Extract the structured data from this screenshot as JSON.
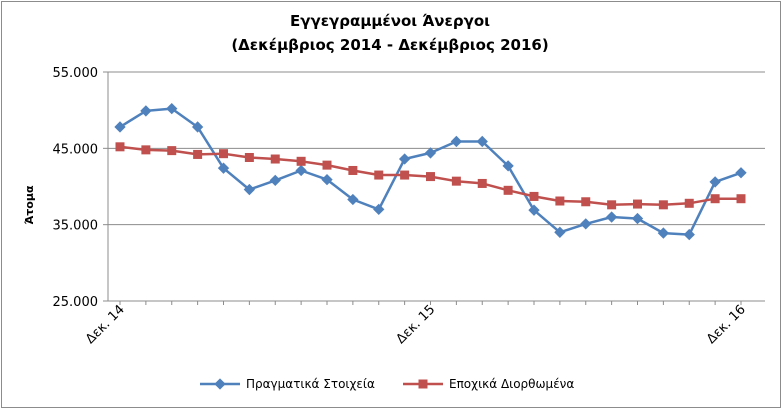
{
  "chart_data": {
    "type": "line",
    "title": "Εγγεγραμμένοι Άνεργοι",
    "subtitle": "(Δεκέμβριος 2014 - Δεκέμβριος 2016)",
    "ylabel": "Άτομα",
    "xlabel": "",
    "ylim": [
      25000,
      55000
    ],
    "yticks": [
      25000,
      35000,
      45000,
      55000
    ],
    "ytick_labels": [
      "25.000",
      "35.000",
      "45.000",
      "55.000"
    ],
    "xtick_labels": [
      {
        "index": 0,
        "label": "Δεκ. 14"
      },
      {
        "index": 12,
        "label": "Δεκ. 15"
      },
      {
        "index": 24,
        "label": "Δεκ. 16"
      }
    ],
    "grid": "horizontal",
    "legend": "bottom",
    "series": [
      {
        "name": "Πραγματικά Στοιχεία",
        "color": "#4f81bd",
        "marker": "diamond",
        "values": [
          47800,
          49900,
          50200,
          47800,
          42400,
          39600,
          40800,
          42100,
          40900,
          38300,
          37000,
          43600,
          44400,
          45900,
          45900,
          42700,
          36900,
          34000,
          35100,
          36000,
          35800,
          33900,
          33700,
          40600,
          41800
        ]
      },
      {
        "name": "Εποχικά Διορθωμένα",
        "color": "#c0504d",
        "marker": "square",
        "values": [
          45200,
          44800,
          44700,
          44200,
          44300,
          43800,
          43600,
          43300,
          42800,
          42100,
          41500,
          41500,
          41300,
          40700,
          40400,
          39500,
          38700,
          38100,
          38000,
          37600,
          37700,
          37600,
          37800,
          38400,
          38400
        ]
      }
    ]
  }
}
